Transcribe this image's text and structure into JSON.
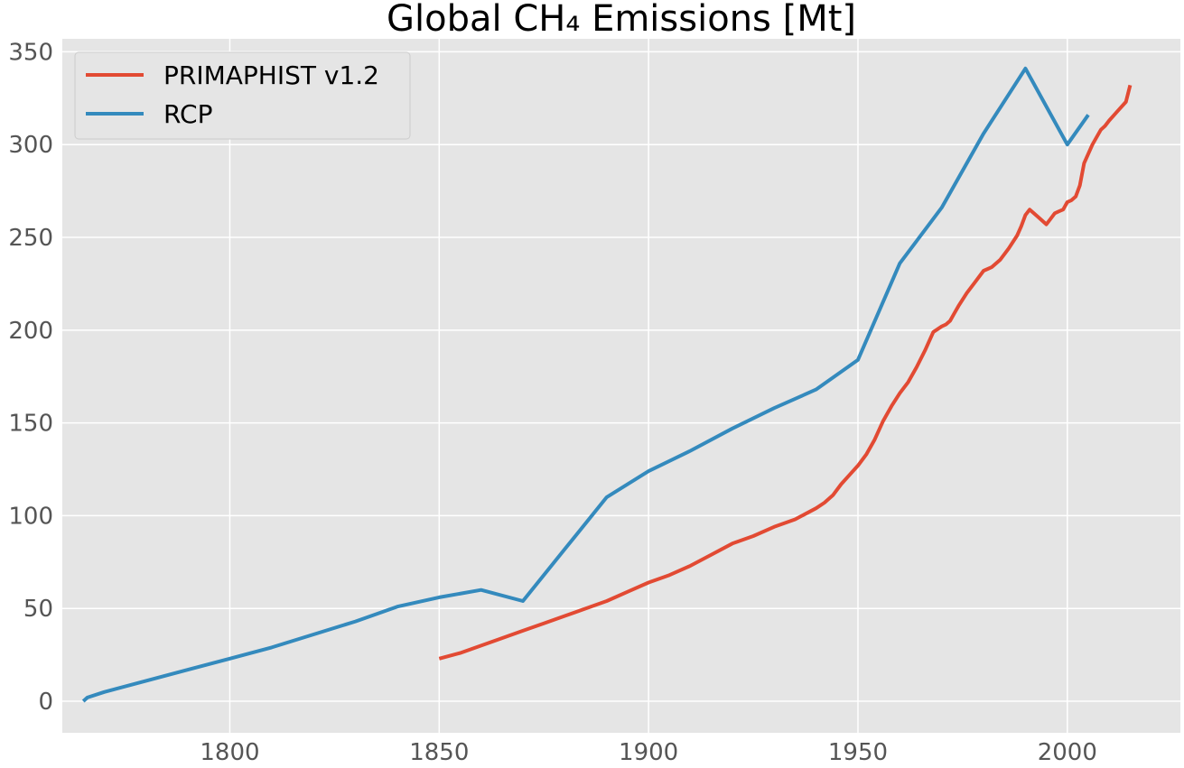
{
  "chart_data": {
    "type": "line",
    "title": "Global CH₄ Emissions [Mt]",
    "xlabel": "",
    "ylabel": "",
    "xlim": [
      1760,
      2027
    ],
    "ylim": [
      -17,
      357
    ],
    "xticks": [
      1800,
      1850,
      1900,
      1950,
      2000
    ],
    "yticks": [
      0,
      50,
      100,
      150,
      200,
      250,
      300,
      350
    ],
    "grid": true,
    "legend": "top-left",
    "background": "#e5e5e5",
    "series": [
      {
        "name": "PRIMAPHIST v1.2",
        "color": "#e24a33",
        "x": [
          1850,
          1855,
          1860,
          1865,
          1870,
          1875,
          1880,
          1885,
          1890,
          1895,
          1900,
          1905,
          1910,
          1915,
          1920,
          1925,
          1930,
          1935,
          1940,
          1942,
          1944,
          1946,
          1948,
          1950,
          1952,
          1954,
          1956,
          1958,
          1960,
          1962,
          1964,
          1966,
          1968,
          1970,
          1971,
          1972,
          1973,
          1974,
          1976,
          1978,
          1980,
          1981,
          1982,
          1984,
          1986,
          1988,
          1989,
          1990,
          1991,
          1992,
          1993,
          1994,
          1995,
          1996,
          1997,
          1998,
          1999,
          2000,
          2001,
          2002,
          2003,
          2004,
          2006,
          2008,
          2009,
          2010,
          2012,
          2014,
          2015
        ],
        "y": [
          23,
          26,
          30,
          34,
          38,
          42,
          46,
          50,
          54,
          59,
          64,
          68,
          73,
          79,
          85,
          89,
          94,
          98,
          104,
          107,
          111,
          117,
          122,
          127,
          133,
          141,
          151,
          159,
          166,
          172,
          180,
          189,
          199,
          202,
          203,
          205,
          209,
          213,
          220,
          226,
          232,
          233,
          234,
          238,
          244,
          251,
          256,
          262,
          265,
          263,
          261,
          259,
          257,
          260,
          263,
          264,
          265,
          269,
          270,
          272,
          278,
          290,
          300,
          308,
          310,
          313,
          318,
          323,
          332
        ]
      },
      {
        "name": "RCP",
        "color": "#348abd",
        "x": [
          1765,
          1766,
          1770,
          1780,
          1790,
          1800,
          1810,
          1820,
          1830,
          1840,
          1850,
          1860,
          1870,
          1880,
          1890,
          1900,
          1910,
          1920,
          1930,
          1940,
          1950,
          1960,
          1970,
          1980,
          1990,
          2000,
          2005
        ],
        "y": [
          0,
          2,
          5,
          11,
          17,
          23,
          29,
          36,
          43,
          51,
          56,
          60,
          54,
          82,
          110,
          124,
          135,
          147,
          158,
          168,
          184,
          236,
          266,
          306,
          341,
          300,
          316
        ]
      }
    ]
  }
}
